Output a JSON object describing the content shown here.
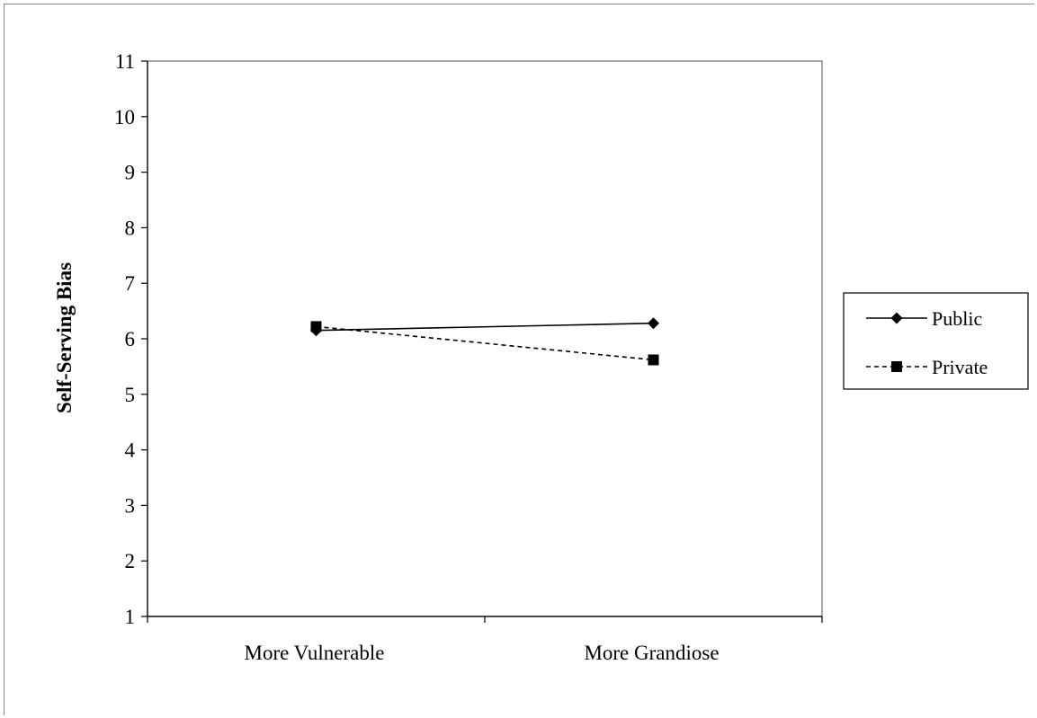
{
  "chart_data": {
    "type": "line",
    "title": "",
    "xlabel": "",
    "ylabel": "Self-Serving Bias",
    "ylim": [
      1,
      11
    ],
    "yticks": [
      1,
      2,
      3,
      4,
      5,
      6,
      7,
      8,
      9,
      10,
      11
    ],
    "categories": [
      "More Vulnerable",
      "More Grandiose"
    ],
    "grid": false,
    "legend_position": "right",
    "series": [
      {
        "name": "Public",
        "values": [
          6.15,
          6.28
        ],
        "marker": "diamond",
        "line_style": "solid",
        "color": "#000000"
      },
      {
        "name": "Private",
        "values": [
          6.22,
          5.62
        ],
        "marker": "square",
        "line_style": "dashed",
        "color": "#000000"
      }
    ]
  }
}
